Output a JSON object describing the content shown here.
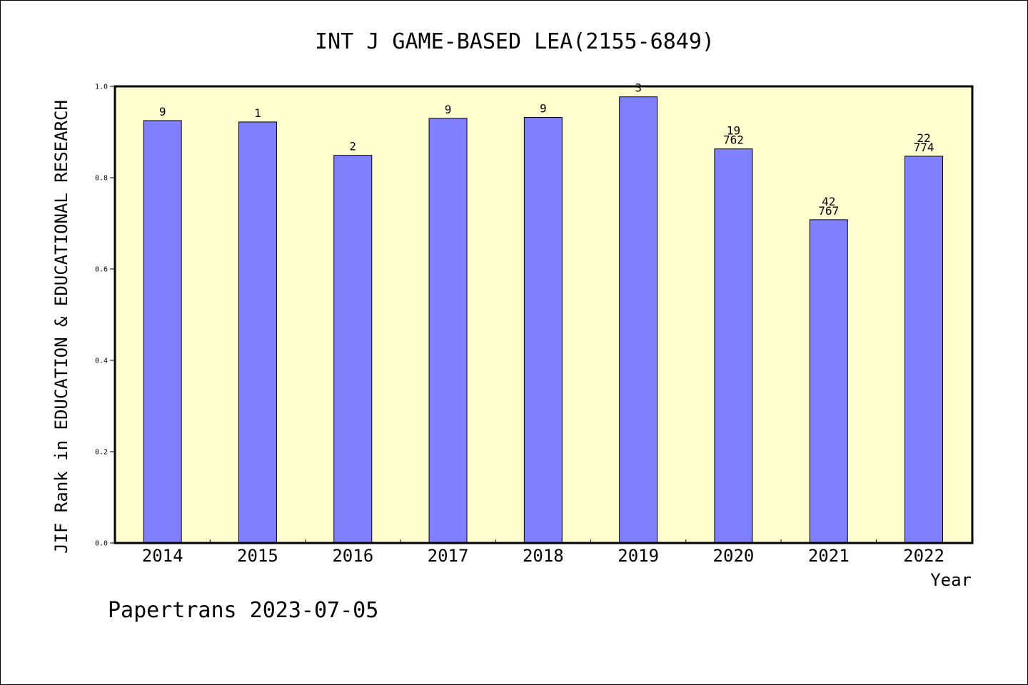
{
  "chart_data": {
    "type": "bar",
    "title": "INT J GAME-BASED LEA(2155-6849)",
    "ylabel": "JIF Rank in EDUCATION & EDUCATIONAL RESEARCH",
    "xlabel": "Year",
    "categories": [
      "2014",
      "2015",
      "2016",
      "2017",
      "2018",
      "2019",
      "2020",
      "2021",
      "2022"
    ],
    "values": [
      0.925,
      0.922,
      0.849,
      0.93,
      0.932,
      0.977,
      0.863,
      0.708,
      0.847
    ],
    "data_labels": [
      [
        "9"
      ],
      [
        "1"
      ],
      [
        "2"
      ],
      [
        "9"
      ],
      [
        "9"
      ],
      [
        "3"
      ],
      [
        "19",
        "762"
      ],
      [
        "42",
        "767"
      ],
      [
        "22",
        "774"
      ]
    ],
    "ylim": [
      0,
      1.0
    ],
    "yticks": [
      "0.0",
      "0.2",
      "0.4",
      "0.6",
      "0.8",
      "1.0"
    ],
    "grid": false,
    "colors": {
      "bar": "#8080ff",
      "plot_background": "#ffffd0",
      "axis": "#000000"
    }
  },
  "footer": "Papertrans 2023-07-05"
}
